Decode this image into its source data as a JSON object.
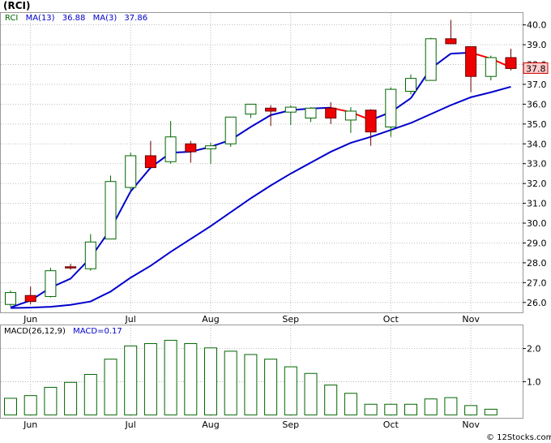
{
  "header": {
    "title": "(RCI)",
    "legend": {
      "series_label": "RCI",
      "ma13_label": "MA(13)",
      "ma13_value": "36.88",
      "ma3_label": "MA(3)",
      "ma3_value": "37.86"
    },
    "last_price_tag": "37.8"
  },
  "macd_header": {
    "label": "MACD(26,12,9)",
    "value_label": "MACD=0.17"
  },
  "watermark": "© 12Stocks.com",
  "colors": {
    "up_candle": "#ffffff",
    "down_candle": "#ee0000",
    "candle_outline": "#006600",
    "ma_line": "#0000cc",
    "ma_recent_segment": "#ff0000",
    "macd_bar_outline": "#006600",
    "grid": "#aaaaaa",
    "price_tag_fill": "#ffcccc"
  },
  "chart_data": [
    {
      "type": "candlestick",
      "title": "(RCI)",
      "frequency": "weekly",
      "y_axis_side": "right",
      "ylim": [
        25.5,
        40.6
      ],
      "yticks": [
        26.0,
        27.0,
        28.0,
        29.0,
        30.0,
        31.0,
        32.0,
        33.0,
        34.0,
        35.0,
        36.0,
        37.0,
        38.0,
        39.0,
        40.0
      ],
      "ytick_labels": [
        "26.0",
        "27.0",
        "28.0",
        "29.0",
        "30.0",
        "31.0",
        "32.0",
        "33.0",
        "34.0",
        "35.0",
        "36.0",
        "37.0",
        "38.0",
        "39.0",
        "40.0"
      ],
      "x_month_labels": [
        {
          "label": "Jun",
          "index": 1
        },
        {
          "label": "Jul",
          "index": 6
        },
        {
          "label": "Aug",
          "index": 10
        },
        {
          "label": "Sep",
          "index": 14
        },
        {
          "label": "Oct",
          "index": 19
        },
        {
          "label": "Nov",
          "index": 23
        }
      ],
      "grid": true,
      "candles": [
        {
          "o": 25.9,
          "h": 26.6,
          "l": 25.8,
          "c": 26.5
        },
        {
          "o": 26.35,
          "h": 26.8,
          "l": 25.9,
          "c": 26.05
        },
        {
          "o": 26.3,
          "h": 27.75,
          "l": 26.25,
          "c": 27.6
        },
        {
          "o": 27.8,
          "h": 27.95,
          "l": 27.65,
          "c": 27.75
        },
        {
          "o": 27.7,
          "h": 29.45,
          "l": 27.6,
          "c": 29.05
        },
        {
          "o": 29.2,
          "h": 32.4,
          "l": 29.2,
          "c": 32.1
        },
        {
          "o": 31.8,
          "h": 33.55,
          "l": 31.6,
          "c": 33.4
        },
        {
          "o": 33.4,
          "h": 34.15,
          "l": 32.85,
          "c": 32.8
        },
        {
          "o": 33.1,
          "h": 35.15,
          "l": 33.0,
          "c": 34.35
        },
        {
          "o": 34.0,
          "h": 34.15,
          "l": 33.05,
          "c": 33.6
        },
        {
          "o": 33.75,
          "h": 34.05,
          "l": 33.0,
          "c": 33.9
        },
        {
          "o": 34.0,
          "h": 35.35,
          "l": 33.85,
          "c": 35.35
        },
        {
          "o": 35.5,
          "h": 36.0,
          "l": 35.3,
          "c": 36.0
        },
        {
          "o": 35.8,
          "h": 35.95,
          "l": 34.9,
          "c": 35.65
        },
        {
          "o": 35.6,
          "h": 35.95,
          "l": 34.95,
          "c": 35.85
        },
        {
          "o": 35.3,
          "h": 35.85,
          "l": 35.1,
          "c": 35.8
        },
        {
          "o": 35.8,
          "h": 36.1,
          "l": 35.0,
          "c": 35.3
        },
        {
          "o": 35.2,
          "h": 35.85,
          "l": 34.55,
          "c": 35.65
        },
        {
          "o": 35.7,
          "h": 35.75,
          "l": 33.9,
          "c": 34.6
        },
        {
          "o": 34.85,
          "h": 36.85,
          "l": 34.35,
          "c": 36.75
        },
        {
          "o": 36.65,
          "h": 37.5,
          "l": 36.5,
          "c": 37.3
        },
        {
          "o": 37.2,
          "h": 39.35,
          "l": 37.2,
          "c": 39.3
        },
        {
          "o": 39.3,
          "h": 40.25,
          "l": 39.05,
          "c": 39.05
        },
        {
          "o": 38.9,
          "h": 38.9,
          "l": 36.6,
          "c": 37.4
        },
        {
          "o": 37.4,
          "h": 38.45,
          "l": 37.2,
          "c": 38.35
        },
        {
          "o": 38.35,
          "h": 38.8,
          "l": 37.7,
          "c": 37.8
        }
      ],
      "ma13": [
        25.72,
        25.74,
        25.78,
        25.88,
        26.05,
        26.55,
        27.25,
        27.85,
        28.55,
        29.2,
        29.85,
        30.55,
        31.25,
        31.9,
        32.5,
        33.05,
        33.6,
        34.05,
        34.35,
        34.7,
        35.05,
        35.5,
        35.95,
        36.35,
        36.6,
        36.88
      ],
      "ma3": [
        25.75,
        26.1,
        26.75,
        27.2,
        28.25,
        29.7,
        31.6,
        32.8,
        33.55,
        33.6,
        33.85,
        34.2,
        34.85,
        35.45,
        35.7,
        35.78,
        35.82,
        35.6,
        35.2,
        35.6,
        36.3,
        37.8,
        38.55,
        38.6,
        38.3,
        37.86
      ],
      "ma3_red_from_index": 15
    },
    {
      "type": "bar",
      "title": "MACD(26,12,9)",
      "ylim": [
        -0.09,
        2.7
      ],
      "yticks": [
        1.0,
        2.0
      ],
      "ytick_labels": [
        "1.0",
        "2.0"
      ],
      "grid": true,
      "values": [
        0.5,
        0.58,
        0.83,
        0.98,
        1.22,
        1.68,
        2.08,
        2.15,
        2.25,
        2.15,
        2.02,
        1.92,
        1.82,
        1.68,
        1.45,
        1.25,
        0.9,
        0.65,
        0.32,
        0.32,
        0.32,
        0.48,
        0.52,
        0.28,
        0.17
      ]
    }
  ]
}
